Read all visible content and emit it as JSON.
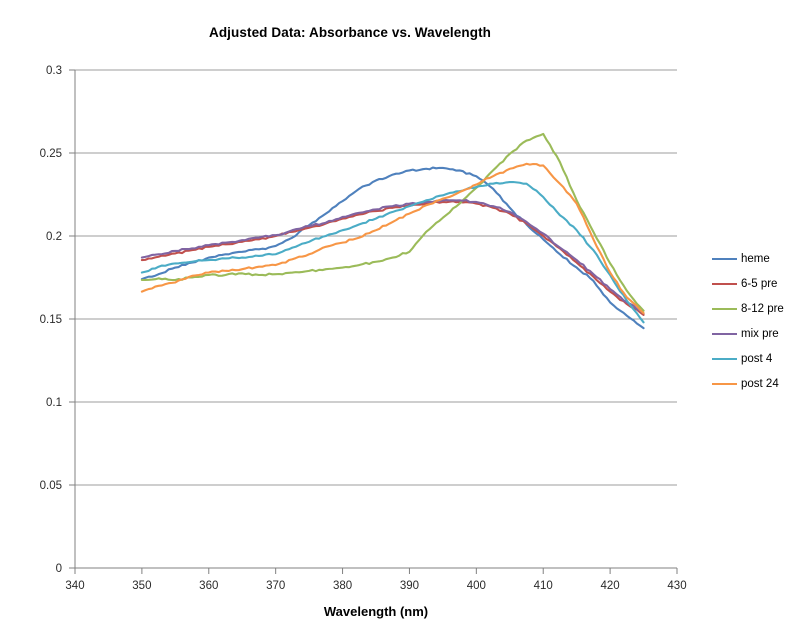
{
  "chart_data": {
    "type": "line",
    "title": "Adjusted Data: Absorbance vs. Wavelength",
    "xlabel": "Wavelength (nm)",
    "ylabel": "",
    "xlim": [
      340,
      430
    ],
    "ylim": [
      0,
      0.3
    ],
    "x_tick_values": [
      340,
      350,
      360,
      370,
      380,
      390,
      400,
      410,
      420,
      430
    ],
    "x_tick_labels": [
      "340",
      "350",
      "360",
      "370",
      "380",
      "390",
      "400",
      "410",
      "420",
      "430"
    ],
    "y_tick_values": [
      0,
      0.05,
      0.1,
      0.15,
      0.2,
      0.25,
      0.3
    ],
    "y_tick_labels": [
      "0",
      "0.05",
      "0.1",
      "0.15",
      "0.2",
      "0.25",
      "0.3"
    ],
    "grid": "horizontal-gridlines-only",
    "legend_position": "right",
    "x": [
      350,
      352.5,
      355,
      357.5,
      360,
      362.5,
      365,
      367.5,
      370,
      372.5,
      375,
      377.5,
      380,
      382.5,
      385,
      387.5,
      390,
      392.5,
      395,
      397.5,
      400,
      402.5,
      405,
      407.5,
      410,
      412.5,
      415,
      417.5,
      420,
      422.5,
      425
    ],
    "series": [
      {
        "name": "heme",
        "color": "#4F81BD",
        "values": [
          0.174,
          0.177,
          0.181,
          0.184,
          0.187,
          0.189,
          0.1905,
          0.192,
          0.194,
          0.199,
          0.2065,
          0.2135,
          0.221,
          0.2285,
          0.2335,
          0.237,
          0.2395,
          0.2405,
          0.241,
          0.2395,
          0.236,
          0.2285,
          0.217,
          0.207,
          0.198,
          0.189,
          0.181,
          0.173,
          0.16,
          0.152,
          0.1445
        ]
      },
      {
        "name": "6-5 pre",
        "color": "#C0504D",
        "values": [
          0.1855,
          0.1875,
          0.1895,
          0.1915,
          0.1935,
          0.195,
          0.1965,
          0.198,
          0.2,
          0.2025,
          0.205,
          0.2075,
          0.2105,
          0.213,
          0.215,
          0.217,
          0.2185,
          0.2195,
          0.2205,
          0.2205,
          0.2195,
          0.217,
          0.2135,
          0.2075,
          0.2,
          0.1925,
          0.184,
          0.1755,
          0.1665,
          0.159,
          0.1525
        ]
      },
      {
        "name": "8-12 pre",
        "color": "#9BBB59",
        "values": [
          0.1735,
          0.1745,
          0.1735,
          0.175,
          0.1765,
          0.1765,
          0.1775,
          0.1765,
          0.177,
          0.178,
          0.179,
          0.18,
          0.181,
          0.1825,
          0.1845,
          0.187,
          0.1905,
          0.2025,
          0.211,
          0.2195,
          0.229,
          0.2395,
          0.2495,
          0.2575,
          0.2615,
          0.2445,
          0.2215,
          0.2025,
          0.1835,
          0.167,
          0.155
        ]
      },
      {
        "name": "mix pre",
        "color": "#8064A2",
        "values": [
          0.187,
          0.189,
          0.191,
          0.1925,
          0.1945,
          0.196,
          0.1975,
          0.199,
          0.2005,
          0.2035,
          0.206,
          0.208,
          0.2115,
          0.214,
          0.216,
          0.218,
          0.2195,
          0.2205,
          0.2215,
          0.2215,
          0.2205,
          0.218,
          0.2145,
          0.2085,
          0.2015,
          0.193,
          0.1855,
          0.177,
          0.168,
          0.16,
          0.1535
        ]
      },
      {
        "name": "post 4",
        "color": "#4BACC6",
        "values": [
          0.178,
          0.1815,
          0.1835,
          0.1845,
          0.1855,
          0.1865,
          0.187,
          0.188,
          0.189,
          0.193,
          0.1965,
          0.2,
          0.2035,
          0.207,
          0.2105,
          0.2145,
          0.218,
          0.2215,
          0.2245,
          0.227,
          0.2295,
          0.2315,
          0.2325,
          0.2315,
          0.2235,
          0.2125,
          0.2035,
          0.1915,
          0.1765,
          0.161,
          0.148
        ]
      },
      {
        "name": "post 24",
        "color": "#F79646",
        "values": [
          0.1665,
          0.17,
          0.172,
          0.176,
          0.178,
          0.179,
          0.18,
          0.1815,
          0.1825,
          0.186,
          0.189,
          0.1935,
          0.196,
          0.199,
          0.2035,
          0.2085,
          0.2135,
          0.2185,
          0.2225,
          0.2265,
          0.231,
          0.236,
          0.2405,
          0.2435,
          0.2425,
          0.2315,
          0.2195,
          0.198,
          0.178,
          0.163,
          0.1535
        ]
      }
    ]
  },
  "style": {
    "background": "#FFFFFF",
    "gridline_color": "#9C9C9C",
    "axis_color": "#808080",
    "tick_text_color": "#2B2B2B",
    "title_text_color": "#000000"
  }
}
